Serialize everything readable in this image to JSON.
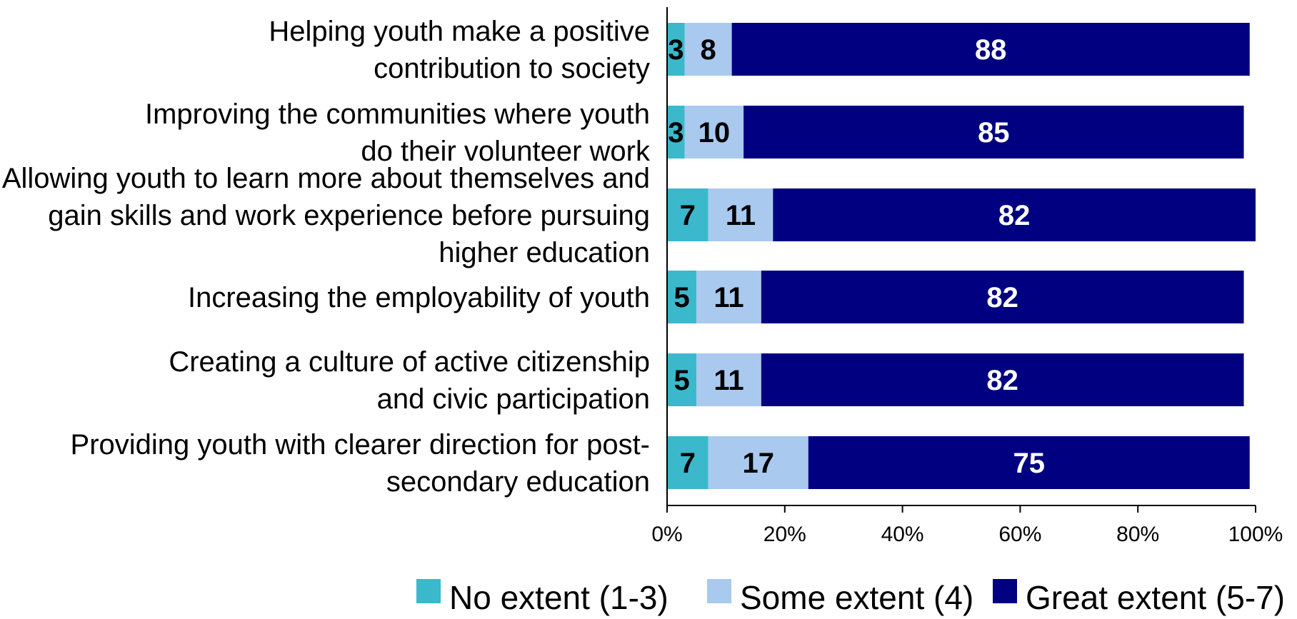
{
  "chart_data": {
    "type": "bar",
    "orientation": "horizontal",
    "stacked": "percent",
    "categories": [
      [
        "Helping youth make a positive",
        "contribution to society"
      ],
      [
        "Improving the communities where youth",
        "do their volunteer work"
      ],
      [
        "Allowing youth to learn more about themselves and",
        "gain skills and work experience before pursuing",
        "higher education"
      ],
      [
        "Increasing the employability of youth"
      ],
      [
        "Creating a culture of active citizenship",
        "and civic participation"
      ],
      [
        "Providing youth with clearer direction for post-",
        "secondary education"
      ]
    ],
    "series": [
      {
        "name": "No extent (1-3)",
        "color": "#3BB8CC",
        "label_color": "#000000",
        "values": [
          3,
          3,
          7,
          5,
          5,
          7
        ]
      },
      {
        "name": "Some extent (4)",
        "color": "#A9C9EF",
        "label_color": "#000000",
        "values": [
          8,
          10,
          11,
          11,
          11,
          17
        ]
      },
      {
        "name": "Great extent (5-7)",
        "color": "#000080",
        "label_color": "#FFFFFF",
        "values": [
          88,
          85,
          82,
          82,
          82,
          75
        ]
      }
    ],
    "xlim": [
      0,
      100
    ],
    "xticks": [
      "0%",
      "20%",
      "40%",
      "60%",
      "80%",
      "100%"
    ],
    "grid": false,
    "legend_position": "bottom"
  }
}
